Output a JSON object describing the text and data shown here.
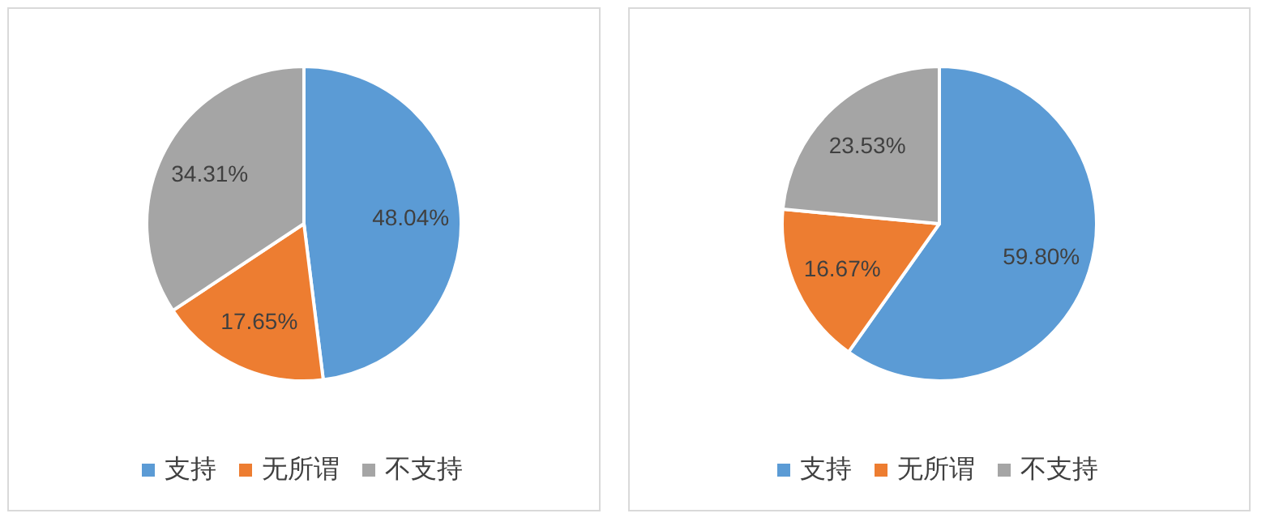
{
  "chart_data": [
    {
      "type": "pie",
      "categories": [
        "支持",
        "无所谓",
        "不支持"
      ],
      "values": [
        48.04,
        17.65,
        34.31
      ],
      "colors": [
        "#5b9bd5",
        "#ed7d31",
        "#a5a5a5"
      ],
      "value_labels": [
        "48.04%",
        "17.65%",
        "34.31%"
      ],
      "legend": "bottom"
    },
    {
      "type": "pie",
      "categories": [
        "支持",
        "无所谓",
        "不支持"
      ],
      "values": [
        59.8,
        16.67,
        23.53
      ],
      "colors": [
        "#5b9bd5",
        "#ed7d31",
        "#a5a5a5"
      ],
      "value_labels": [
        "59.80%",
        "16.67%",
        "23.53%"
      ],
      "legend": "bottom"
    }
  ]
}
